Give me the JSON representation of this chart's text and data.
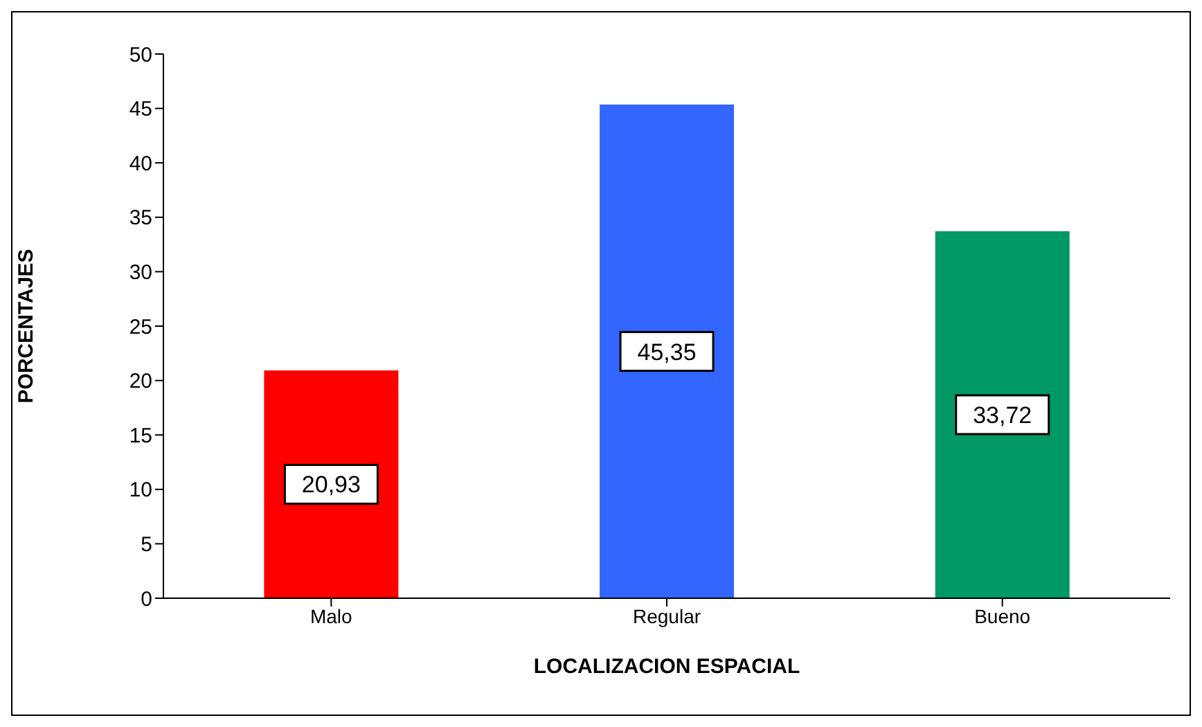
{
  "chart_data": {
    "type": "bar",
    "xlabel": "LOCALIZACION ESPACIAL",
    "ylabel": "PORCENTAJES",
    "categories": [
      "Malo",
      "Regular",
      "Bueno"
    ],
    "values": [
      20.93,
      45.35,
      33.72
    ],
    "colors": [
      "#ff0000",
      "#3366ff",
      "#009966"
    ],
    "value_labels": [
      "20,93",
      "45,35",
      "33,72"
    ],
    "ylim": [
      0,
      50
    ],
    "yticks": [
      0,
      5,
      10,
      15,
      20,
      25,
      30,
      35,
      40,
      45,
      50
    ],
    "grid": false,
    "legend": false
  }
}
